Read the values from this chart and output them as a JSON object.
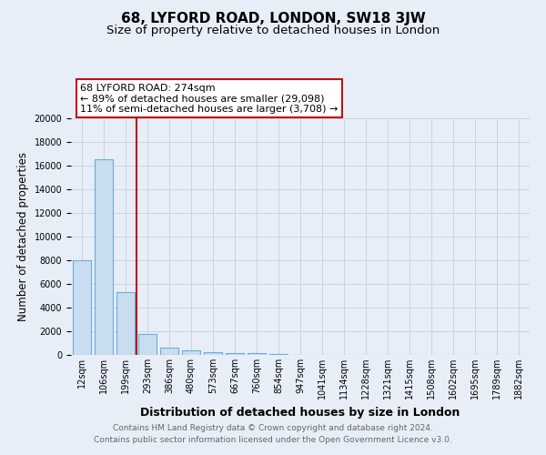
{
  "title": "68, LYFORD ROAD, LONDON, SW18 3JW",
  "subtitle": "Size of property relative to detached houses in London",
  "xlabel": "Distribution of detached houses by size in London",
  "ylabel": "Number of detached properties",
  "footer_line1": "Contains HM Land Registry data © Crown copyright and database right 2024.",
  "footer_line2": "Contains public sector information licensed under the Open Government Licence v3.0.",
  "categories": [
    "12sqm",
    "106sqm",
    "199sqm",
    "293sqm",
    "386sqm",
    "480sqm",
    "573sqm",
    "667sqm",
    "760sqm",
    "854sqm",
    "947sqm",
    "1041sqm",
    "1134sqm",
    "1228sqm",
    "1321sqm",
    "1415sqm",
    "1508sqm",
    "1602sqm",
    "1695sqm",
    "1789sqm",
    "1882sqm"
  ],
  "values": [
    8000,
    16500,
    5300,
    1750,
    650,
    380,
    220,
    160,
    130,
    100,
    0,
    0,
    0,
    0,
    0,
    0,
    0,
    0,
    0,
    0,
    0
  ],
  "bar_color": "#c8ddf0",
  "bar_edge_color": "#6baed6",
  "bar_edge_width": 0.8,
  "grid_color": "#c8d4e4",
  "background_color": "#e8eef8",
  "red_line_x": 2.5,
  "red_line_color": "#bb1111",
  "annotation_text": "68 LYFORD ROAD: 274sqm\n← 89% of detached houses are smaller (29,098)\n11% of semi-detached houses are larger (3,708) →",
  "annotation_box_color": "white",
  "annotation_box_edge": "#bb1111",
  "ylim": [
    0,
    20000
  ],
  "yticks": [
    0,
    2000,
    4000,
    6000,
    8000,
    10000,
    12000,
    14000,
    16000,
    18000,
    20000
  ],
  "title_fontsize": 11,
  "subtitle_fontsize": 9.5,
  "xlabel_fontsize": 9,
  "ylabel_fontsize": 8.5,
  "tick_fontsize": 7,
  "footer_fontsize": 6.5,
  "annotation_fontsize": 8
}
